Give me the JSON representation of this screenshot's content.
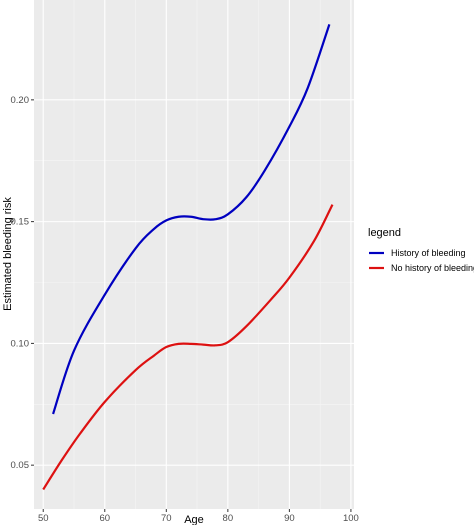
{
  "chart_data": {
    "type": "line",
    "title": "",
    "xlabel": "Age",
    "ylabel": "Estimated bleeding risk",
    "xlim": [
      48.5,
      100.5
    ],
    "ylim": [
      0.032,
      0.241
    ],
    "x_ticks": [
      50,
      60,
      70,
      80,
      90,
      100
    ],
    "y_ticks": [
      0.05,
      0.1,
      0.15,
      0.2
    ],
    "x_tick_labels": [
      "50",
      "60",
      "70",
      "80",
      "90",
      "100"
    ],
    "y_tick_labels": [
      "0.05",
      "0.10",
      "0.15",
      "0.20"
    ],
    "grid": true,
    "background": "#ebebeb",
    "legend": {
      "title": "legend",
      "placement": "right"
    },
    "series": [
      {
        "name": "History of bleeding",
        "color": "#0000c0",
        "x": [
          51.6,
          55,
          60,
          65,
          68,
          70,
          72,
          74,
          76,
          78,
          80,
          83,
          86,
          90,
          93,
          96.5
        ],
        "y": [
          0.071,
          0.097,
          0.12,
          0.139,
          0.147,
          0.1505,
          0.152,
          0.152,
          0.151,
          0.151,
          0.153,
          0.16,
          0.171,
          0.189,
          0.205,
          0.231
        ]
      },
      {
        "name": "No history of bleeding",
        "color": "#dd1111",
        "x": [
          50,
          53,
          56,
          60,
          65,
          68,
          70,
          72,
          74,
          76,
          78,
          80,
          83,
          87,
          90,
          94,
          97
        ],
        "y": [
          0.04,
          0.052,
          0.063,
          0.076,
          0.089,
          0.095,
          0.0985,
          0.0998,
          0.0998,
          0.0995,
          0.0992,
          0.1005,
          0.107,
          0.118,
          0.127,
          0.142,
          0.157
        ]
      }
    ]
  }
}
